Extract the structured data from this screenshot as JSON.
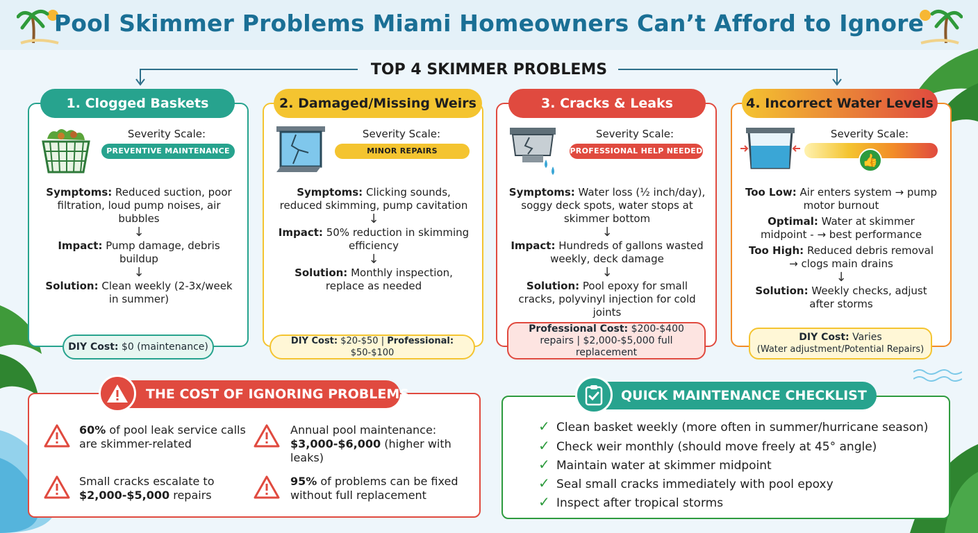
{
  "title": "Pool Skimmer Problems Miami Homeowners Can’t Afford to Ignore",
  "section_label": "TOP 4 SKIMMER PROBLEMS",
  "severity_label": "Severity Scale:",
  "colors": {
    "teal": "#27a38e",
    "yellow": "#f4c430",
    "red": "#e04a3f",
    "orange": "#f28c28",
    "green_check": "#2e9b3e",
    "title_blue": "#1a6f95"
  },
  "cards": [
    {
      "title": "1. Clogged Baskets",
      "severity": "PREVENTIVE MAINTENANCE",
      "icon": "basket-icon",
      "symptoms_label": "Symptoms:",
      "symptoms": " Reduced suction, poor filtration, loud pump noises, air bubbles",
      "impact_label": "Impact:",
      "impact": " Pump damage, debris buildup",
      "solution_label": "Solution:",
      "solution": " Clean weekly (2-3x/week in summer)",
      "cost_label": "DIY Cost:",
      "cost": " $0 (maintenance)"
    },
    {
      "title": "2. Damaged/Missing Weirs",
      "severity": "MINOR REPAIRS",
      "icon": "broken-weir-icon",
      "symptoms_label": "Symptoms:",
      "symptoms": " Clicking sounds, reduced skimming, pump cavitation",
      "impact_label": "Impact:",
      "impact": " 50% reduction in skimming efficiency",
      "solution_label": "Solution:",
      "solution": " Monthly inspection, replace as needed",
      "cost_label": "DIY Cost:",
      "cost": " $20-$50 | ",
      "cost2_label": "Professional:",
      "cost2": " $50-$100"
    },
    {
      "title": "3. Cracks & Leaks",
      "severity": "PROFESSIONAL HELP NEEDED",
      "icon": "cracked-skimmer-icon",
      "symptoms_label": "Symptoms:",
      "symptoms": " Water loss (½ inch/day), soggy deck spots, water stops at skimmer bottom",
      "impact_label": "Impact:",
      "impact": " Hundreds of gallons wasted weekly, deck damage",
      "solution_label": "Solution:",
      "solution": " Pool epoxy for small cracks, polyvinyl injection for cold joints",
      "cost_label": "Professional Cost:",
      "cost": " $200-$400 repairs | $2,000-$5,000 full replacement"
    },
    {
      "title": "4. Incorrect Water Levels",
      "icon": "water-level-icon",
      "low_label": "Too Low:",
      "low": " Air enters system → pump motor burnout",
      "optimal_label": "Optimal:",
      "optimal": " Water at skimmer midpoint - → best performance",
      "high_label": "Too High:",
      "high": " Reduced debris removal → clogs main drains",
      "solution_label": "Solution:",
      "solution": " Weekly checks, adjust after storms",
      "cost_label": "DIY Cost:",
      "cost": " Varies",
      "cost_note": "(Water adjustment/Potential Repairs)"
    }
  ],
  "cost_panel": {
    "title": "THE COST OF IGNORING PROBLEMS",
    "stats": [
      {
        "bold": "60%",
        "text": " of pool leak service calls are skimmer-related"
      },
      {
        "pre": "Annual pool maintenance: ",
        "bold": "$3,000-$6,000",
        "text": " (higher with leaks)"
      },
      {
        "pre": "Small cracks escalate to ",
        "bold": "$2,000-$5,000",
        "text": " repairs"
      },
      {
        "bold": "95%",
        "text": " of problems can be fixed without full replacement"
      }
    ]
  },
  "checklist": {
    "title": "QUICK MAINTENANCE CHECKLIST",
    "items": [
      "Clean basket weekly (more often in summer/hurricane season)",
      "Check weir monthly (should move freely at 45° angle)",
      "Maintain water at skimmer midpoint",
      "Seal small cracks immediately with pool epoxy",
      "Inspect after tropical storms"
    ]
  }
}
